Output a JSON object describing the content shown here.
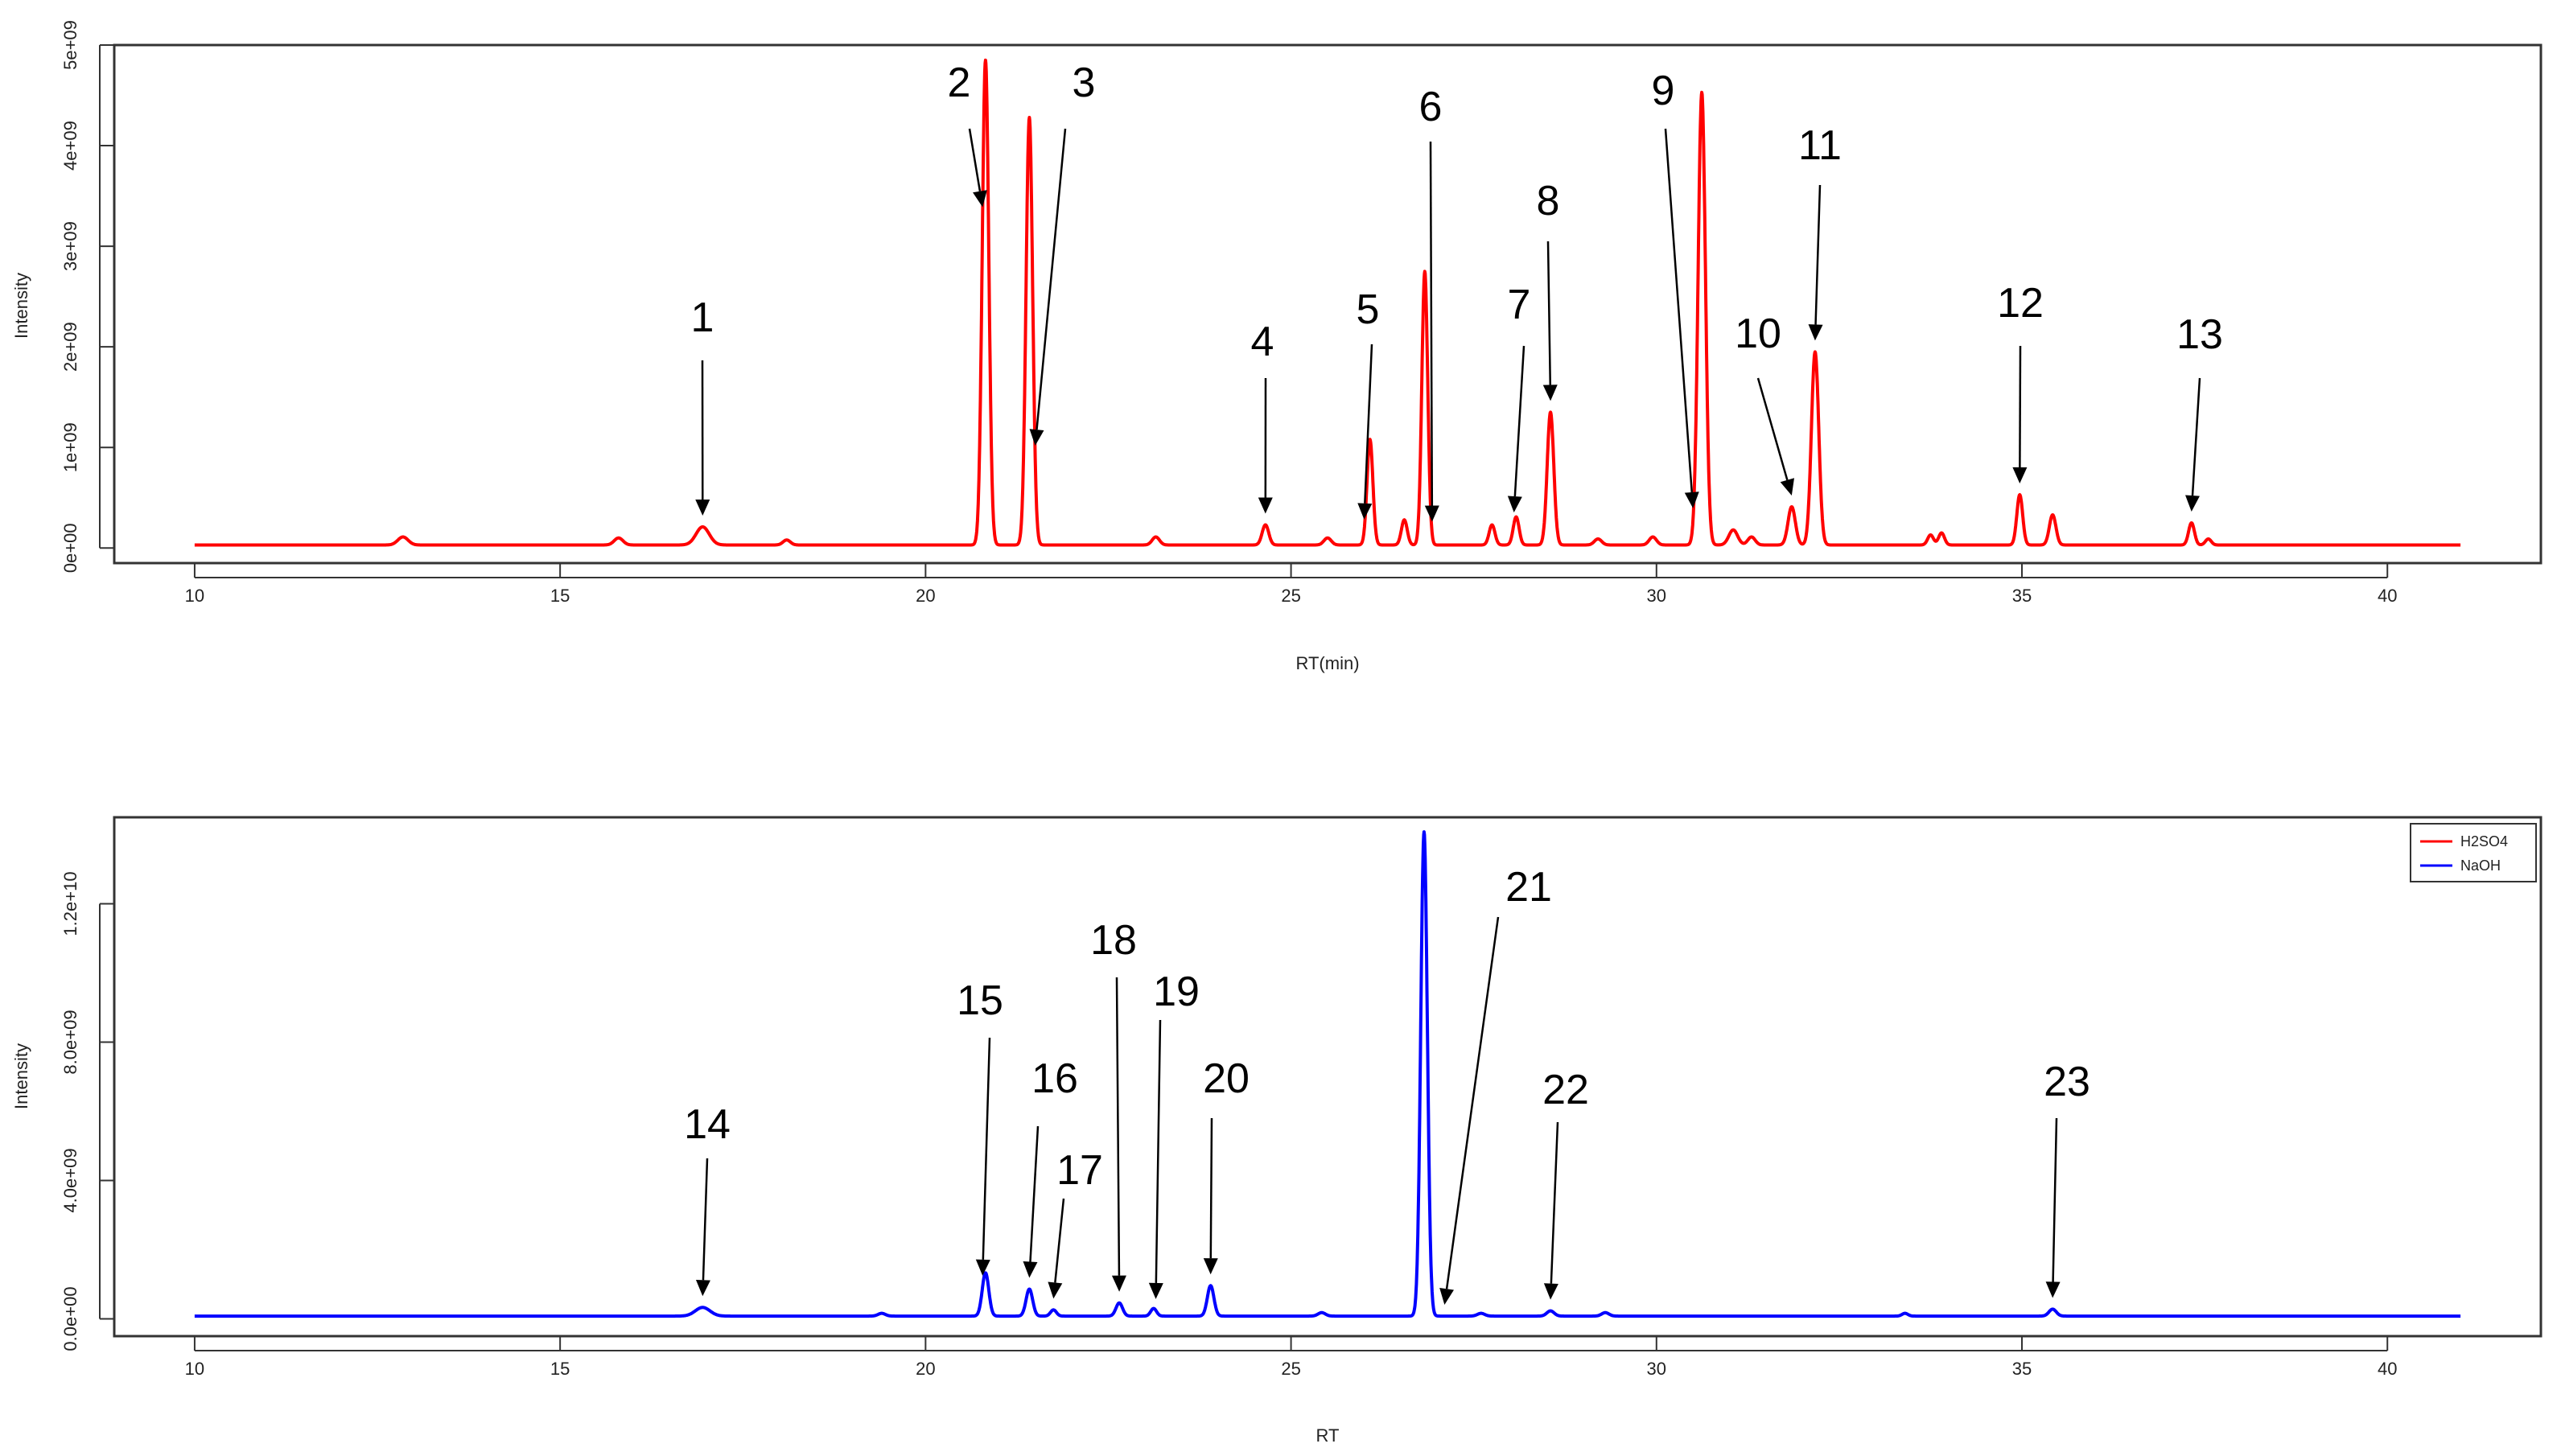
{
  "chart_data": [
    {
      "type": "line",
      "id": "top",
      "xlabel": "RT(min)",
      "ylabel": "Intensity",
      "xlim": [
        8.9,
        42.1
      ],
      "ylim": [
        -150000000.0,
        5000000000.0
      ],
      "xticks": [
        10,
        15,
        20,
        25,
        30,
        35,
        40
      ],
      "yticks": [
        0,
        1000000000.0,
        2000000000.0,
        3000000000.0,
        4000000000.0,
        5000000000.0
      ],
      "ytick_labels": [
        "0e+00",
        "1e+09",
        "2e+09",
        "3e+09",
        "4e+09",
        "5e+09"
      ],
      "series": [
        {
          "name": "H2SO4",
          "color": "#ff0000",
          "baseline": 30000000.0,
          "peaks": [
            [
              12.85,
              80000000.0,
              0.07
            ],
            [
              15.8,
              70000000.0,
              0.06
            ],
            [
              16.95,
              180000000.0,
              0.09
            ],
            [
              18.1,
              50000000.0,
              0.05
            ],
            [
              20.82,
              4820000000.0,
              0.045
            ],
            [
              21.42,
              4250000000.0,
              0.045
            ],
            [
              23.15,
              80000000.0,
              0.05
            ],
            [
              24.65,
              200000000.0,
              0.045
            ],
            [
              25.5,
              70000000.0,
              0.05
            ],
            [
              26.08,
              1050000000.0,
              0.04
            ],
            [
              26.55,
              250000000.0,
              0.04
            ],
            [
              26.83,
              2720000000.0,
              0.04
            ],
            [
              27.75,
              200000000.0,
              0.04
            ],
            [
              28.08,
              280000000.0,
              0.04
            ],
            [
              28.55,
              1320000000.0,
              0.045
            ],
            [
              29.2,
              60000000.0,
              0.05
            ],
            [
              29.95,
              80000000.0,
              0.05
            ],
            [
              30.62,
              4500000000.0,
              0.05
            ],
            [
              31.05,
              150000000.0,
              0.06
            ],
            [
              31.3,
              80000000.0,
              0.05
            ],
            [
              31.85,
              380000000.0,
              0.05
            ],
            [
              32.17,
              1920000000.0,
              0.05
            ],
            [
              33.75,
              100000000.0,
              0.04
            ],
            [
              33.9,
              120000000.0,
              0.04
            ],
            [
              34.97,
              500000000.0,
              0.04
            ],
            [
              35.42,
              300000000.0,
              0.045
            ],
            [
              37.32,
              220000000.0,
              0.04
            ],
            [
              37.55,
              60000000.0,
              0.04
            ]
          ]
        }
      ],
      "annotations": [
        {
          "text": "1",
          "x": 16.95
        },
        {
          "text": "2",
          "x": 20.78
        },
        {
          "text": "3",
          "x": 21.5
        },
        {
          "text": "4",
          "x": 24.65
        },
        {
          "text": "5",
          "x": 26.0
        },
        {
          "text": "6",
          "x": 26.93
        },
        {
          "text": "7",
          "x": 28.05
        },
        {
          "text": "8",
          "x": 28.55
        },
        {
          "text": "9",
          "x": 30.5
        },
        {
          "text": "10",
          "x": 31.85
        },
        {
          "text": "11",
          "x": 32.17
        },
        {
          "text": "12",
          "x": 34.97
        },
        {
          "text": "13",
          "x": 37.32
        }
      ]
    },
    {
      "type": "line",
      "id": "bottom",
      "xlabel": "RT",
      "ylabel": "Intensity",
      "xlim": [
        8.9,
        42.1
      ],
      "ylim": [
        -500000000.0,
        14500000000.0
      ],
      "xticks": [
        10,
        15,
        20,
        25,
        30,
        35,
        40
      ],
      "yticks": [
        0,
        4000000000.0,
        8000000000.0,
        12000000000.0
      ],
      "ytick_labels": [
        "0.0e+00",
        "4.0e+09",
        "8.0e+09",
        "1.2e+10"
      ],
      "legend": {
        "position": "top-right",
        "entries": [
          {
            "label": "H2SO4",
            "color": "#ff0000"
          },
          {
            "label": "NaOH",
            "color": "#0000ff"
          }
        ]
      },
      "series": [
        {
          "name": "NaOH",
          "color": "#0000ff",
          "baseline": 80000000.0,
          "peaks": [
            [
              16.95,
              250000000.0,
              0.1
            ],
            [
              19.4,
              80000000.0,
              0.05
            ],
            [
              20.82,
              1250000000.0,
              0.045
            ],
            [
              21.42,
              780000000.0,
              0.045
            ],
            [
              21.75,
              180000000.0,
              0.04
            ],
            [
              22.65,
              380000000.0,
              0.045
            ],
            [
              23.12,
              220000000.0,
              0.04
            ],
            [
              23.9,
              880000000.0,
              0.045
            ],
            [
              25.42,
              100000000.0,
              0.05
            ],
            [
              26.82,
              14000000000.0,
              0.045
            ],
            [
              27.6,
              80000000.0,
              0.05
            ],
            [
              28.55,
              150000000.0,
              0.05
            ],
            [
              29.3,
              100000000.0,
              0.05
            ],
            [
              33.4,
              80000000.0,
              0.04
            ],
            [
              35.42,
              200000000.0,
              0.05
            ]
          ]
        }
      ],
      "annotations": [
        {
          "text": "14",
          "x": 16.95
        },
        {
          "text": "15",
          "x": 20.78
        },
        {
          "text": "16",
          "x": 21.42
        },
        {
          "text": "17",
          "x": 21.75
        },
        {
          "text": "18",
          "x": 22.65
        },
        {
          "text": "19",
          "x": 23.15
        },
        {
          "text": "20",
          "x": 23.9
        },
        {
          "text": "21",
          "x": 27.1
        },
        {
          "text": "22",
          "x": 28.55
        },
        {
          "text": "23",
          "x": 35.42
        }
      ]
    }
  ]
}
